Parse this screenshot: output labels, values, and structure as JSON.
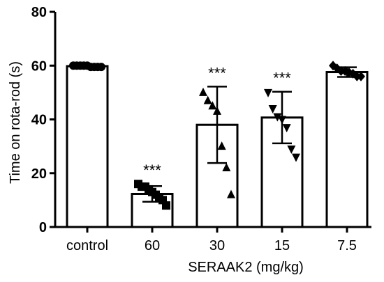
{
  "chart_data": {
    "type": "bar",
    "title": "",
    "ylabel": "Time on rota-rod (s)",
    "xlabel": "SERAAK2 (mg/kg)",
    "ylim": [
      0,
      80
    ],
    "yticks": [
      0,
      20,
      40,
      60,
      80
    ],
    "categories": [
      "control",
      "60",
      "30",
      "15",
      "7.5"
    ],
    "means": [
      59.8,
      12.3,
      38.0,
      40.7,
      57.6
    ],
    "sd": [
      0.4,
      2.9,
      14.2,
      9.6,
      1.8
    ],
    "significance": [
      "",
      "***",
      "***",
      "***",
      ""
    ],
    "marker_shapes": [
      "circle",
      "square",
      "triangle-up",
      "triangle-down",
      "diamond"
    ],
    "points": [
      [
        60,
        60,
        60,
        60,
        60,
        59.5,
        59.5,
        59.5,
        59.5
      ],
      [
        16,
        15,
        15,
        14,
        13,
        12,
        11,
        10,
        8
      ],
      [
        50,
        47,
        45,
        43,
        30,
        22,
        12
      ],
      [
        50,
        44,
        41,
        40,
        37,
        29,
        26
      ],
      [
        60,
        59,
        58,
        58,
        57.5,
        57,
        56,
        56
      ]
    ],
    "bar_color": "#ffffff",
    "stroke_color": "#000000",
    "grid": false
  }
}
